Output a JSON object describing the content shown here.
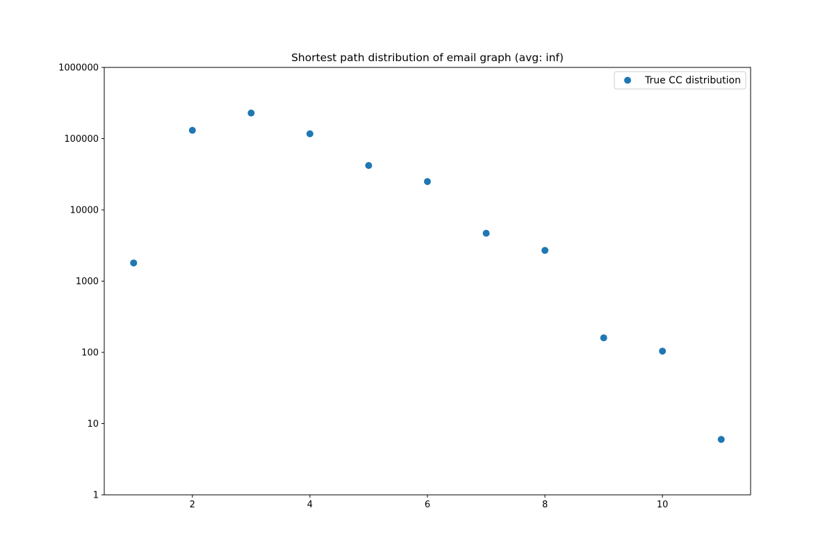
{
  "chart_data": {
    "type": "scatter",
    "title": "Shortest path distribution of email graph (avg: inf)",
    "xlabel": "",
    "ylabel": "",
    "x": [
      1,
      2,
      3,
      4,
      5,
      6,
      7,
      8,
      9,
      10,
      11
    ],
    "series": [
      {
        "name": "True CC distribution",
        "values": [
          1800,
          131000,
          229000,
          117000,
          42000,
          25000,
          4700,
          2700,
          160,
          104,
          6
        ],
        "color": "#1f77b4"
      }
    ],
    "xlim": [
      0.5,
      11.5
    ],
    "ylim": [
      1,
      1000000
    ],
    "yscale": "log",
    "x_ticks": [
      "2",
      "4",
      "6",
      "8",
      "10"
    ],
    "y_ticks": [
      "1",
      "10",
      "100",
      "1000",
      "10000",
      "100000",
      "1000000"
    ],
    "grid": false,
    "legend_position": "top-right"
  }
}
